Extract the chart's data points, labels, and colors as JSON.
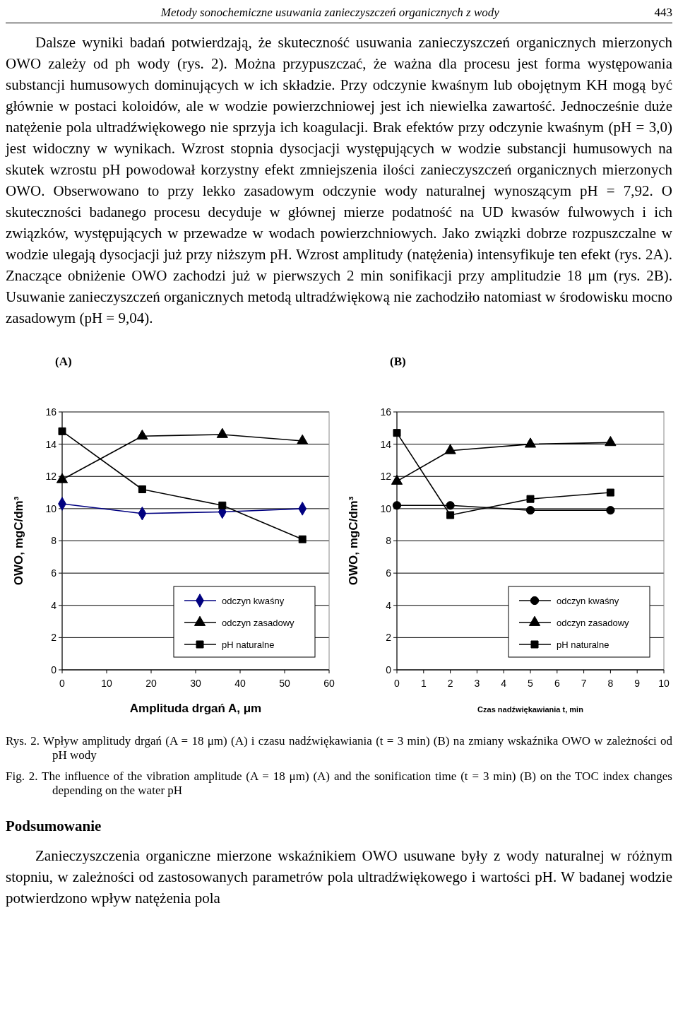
{
  "chart_data": [
    {
      "type": "line",
      "title": "(A)",
      "xlabel": "Amplituda drgań  A, μm",
      "ylabel": "OWO, mgC/dm³",
      "annotations": [
        "Metody sonochemiczne usuwania zanieczyszczeń organicznych z wody",
        "443",
        "Dalsze wyniki badań potwierdzają, że skuteczność usuwania zanieczyszczeń organicznych mierzonych OWO zależy od ph wody (rys. 2). Można przypuszczać, że ważna dla procesu jest forma występowania substancji humusowych dominujących w ich składzie. Przy odczynie kwaśnym lub obojętnym KH mogą być głównie w postaci koloidów, ale w wodzie powierzchniowej jest ich niewielka zawartość. Jednocześnie duże natężenie pola ultradźwiękowego nie sprzyja ich koagulacji. Brak efektów przy odczynie kwaśnym (pH = 3,0) jest widoczny w wynikach. Wzrost stopnia dysocjacji występujących w wodzie substancji humusowych na skutek wzrostu pH powodował korzystny efekt zmniejszenia ilości zanieczyszczeń organicznych mierzonych OWO. Obserwowano to przy lekko zasadowym odczynie wody naturalnej wynoszącym pH = 7,92. O skuteczności badanego procesu decyduje w głównej mierze podatność na UD kwasów fulwowych i ich związków, występujących w przewadze w wodach powierzchniowych. Jako związki dobrze rozpuszczalne w wodzie ulegają dysocjacji już przy niższym pH. Wzrost amplitudy (natężenia) intensyfikuje ten efekt (rys. 2A). Znaczące obniżenie OWO zachodzi już w pierwszych 2 min sonifikacji przy amplitudzie 18 μm (rys. 2B). Usuwanie zanieczyszczeń organicznych metodą ultradźwiękową nie zachodziło natomiast w środowisku mocno zasadowym (pH = 9,04)."
      ],
      "x": [
        0,
        18,
        36,
        54
      ],
      "xlim": [
        0,
        60
      ],
      "xticks": [
        0,
        10,
        20,
        30,
        40,
        50,
        60
      ],
      "ylim": [
        0,
        16
      ],
      "yticks": [
        0,
        2,
        4,
        6,
        8,
        10,
        12,
        14,
        16
      ],
      "grid": "y",
      "legend": "bottom right",
      "series": [
        {
          "name": "odczyn kwaśny",
          "color": "#000080",
          "marker": "diamond",
          "values": [
            10.3,
            9.7,
            9.8,
            10.0
          ]
        },
        {
          "name": "odczyn zasadowy",
          "color": "#000000",
          "marker": "triangle",
          "values": [
            11.8,
            14.5,
            14.6,
            14.2
          ]
        },
        {
          "name": "pH naturalne",
          "color": "#000000",
          "marker": "square",
          "values": [
            14.8,
            11.2,
            10.2,
            8.1
          ]
        }
      ]
    },
    {
      "type": "line",
      "title": "(B)",
      "xlabel": "Czas nadźwiękawiania  t, min",
      "ylabel": "OWO,  mgC/dm³",
      "annotations": [
        "Rys. 2. Wpływ amplitudy drgań (A = 18 μm) (A) i czasu nadźwiękawiania (t = 3 min) (B) na zmiany wskaźnika OWO w zależności od pH wody",
        "Fig. 2. The influence of the vibration amplitude (A = 18 μm) (A) and the sonification time (t = 3 min) (B) on the TOC index changes depending on the water pH",
        "Podsumowanie",
        "Zanieczyszczenia organiczne mierzone wskaźnikiem OWO usuwane były z wody naturalnej w różnym stopniu, w zależności od zastosowanych parametrów pola ultradźwiękowego i wartości pH. W badanej wodzie potwierdzono wpływ natężenia pola"
      ],
      "x": [
        0,
        2,
        5,
        8
      ],
      "xlim": [
        0,
        10
      ],
      "xticks": [
        0,
        1,
        2,
        3,
        4,
        5,
        6,
        7,
        8,
        9,
        10
      ],
      "ylim": [
        0,
        16
      ],
      "yticks": [
        0,
        2,
        4,
        6,
        8,
        10,
        12,
        14,
        16
      ],
      "grid": "y",
      "legend": "bottom right",
      "series": [
        {
          "name": "odczyn kwaśny",
          "color": "#000000",
          "marker": "circle",
          "values": [
            10.2,
            10.2,
            9.9,
            9.9
          ]
        },
        {
          "name": "odczyn zasadowy",
          "color": "#000000",
          "marker": "triangle",
          "values": [
            11.7,
            13.6,
            14.0,
            14.1
          ]
        },
        {
          "name": "pH naturalne",
          "color": "#000000",
          "marker": "square",
          "values": [
            14.7,
            9.6,
            10.6,
            11.0
          ]
        }
      ]
    }
  ]
}
